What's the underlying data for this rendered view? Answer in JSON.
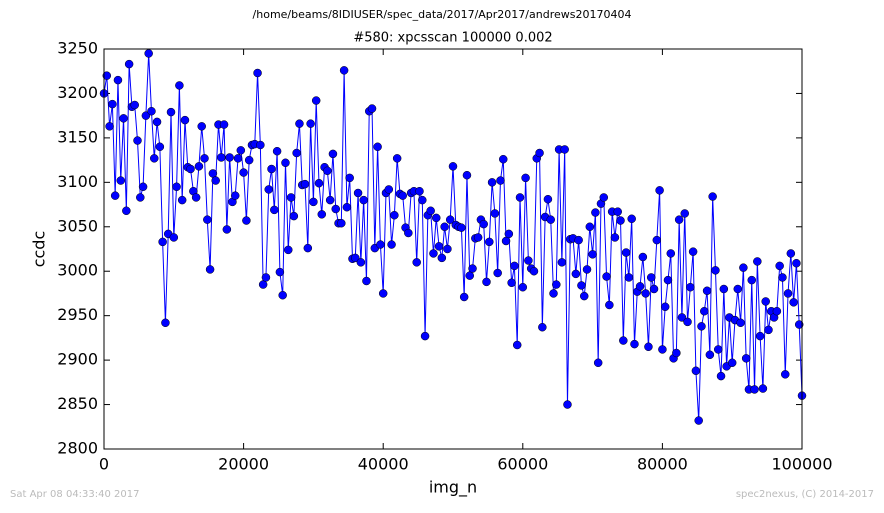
{
  "chart_data": {
    "type": "line",
    "suptitle": "/home/beams/8IDIUSER/spec_data/2017/Apr2017/andrews20170404",
    "title": "#580: xpcsscan 100000 0.002",
    "xlabel": "img_n",
    "ylabel": "ccdc",
    "footer_left": "Sat Apr 08 04:33:40 2017",
    "footer_right": "spec2nexus, (C) 2014-2017",
    "xlim": [
      0,
      100000
    ],
    "ylim": [
      2800,
      3250
    ],
    "xticks": [
      0,
      20000,
      40000,
      60000,
      80000,
      100000
    ],
    "yticks": [
      2800,
      2850,
      2900,
      2950,
      3000,
      3050,
      3100,
      3150,
      3200,
      3250
    ],
    "grid": false,
    "x": [
      0,
      400,
      800,
      1200,
      1600,
      2000,
      2400,
      2800,
      3200,
      3600,
      4000,
      4400,
      4800,
      5200,
      5600,
      6000,
      6400,
      6800,
      7200,
      7600,
      8000,
      8400,
      8800,
      9200,
      9600,
      10000,
      10400,
      10800,
      11200,
      11600,
      12000,
      12400,
      12800,
      13200,
      13600,
      14000,
      14400,
      14800,
      15200,
      15600,
      16000,
      16400,
      16800,
      17200,
      17600,
      18000,
      18400,
      18800,
      19200,
      19600,
      20000,
      20400,
      20800,
      21200,
      21600,
      22000,
      22400,
      22800,
      23200,
      23600,
      24000,
      24400,
      24800,
      25200,
      25600,
      26000,
      26400,
      26800,
      27200,
      27600,
      28000,
      28400,
      28800,
      29200,
      29600,
      30000,
      30400,
      30800,
      31200,
      31600,
      32000,
      32400,
      32800,
      33200,
      33600,
      34000,
      34400,
      34800,
      35200,
      35600,
      36000,
      36400,
      36800,
      37200,
      37600,
      38000,
      38400,
      38800,
      39200,
      39600,
      40000,
      40400,
      40800,
      41200,
      41600,
      42000,
      42400,
      42800,
      43200,
      43600,
      44000,
      44400,
      44800,
      45200,
      45600,
      46000,
      46400,
      46800,
      47200,
      47600,
      48000,
      48400,
      48800,
      49200,
      49600,
      50000,
      50400,
      50800,
      51200,
      51600,
      52000,
      52400,
      52800,
      53200,
      53600,
      54000,
      54400,
      54800,
      55200,
      55600,
      56000,
      56400,
      56800,
      57200,
      57600,
      58000,
      58400,
      58800,
      59200,
      59600,
      60000,
      60400,
      60800,
      61200,
      61600,
      62000,
      62400,
      62800,
      63200,
      63600,
      64000,
      64400,
      64800,
      65200,
      65600,
      66000,
      66400,
      66800,
      67200,
      67600,
      68000,
      68400,
      68800,
      69200,
      69600,
      70000,
      70400,
      70800,
      71200,
      71600,
      72000,
      72400,
      72800,
      73200,
      73600,
      74000,
      74400,
      74800,
      75200,
      75600,
      76000,
      76400,
      76800,
      77200,
      77600,
      78000,
      78400,
      78800,
      79200,
      79600,
      80000,
      80400,
      80800,
      81200,
      81600,
      82000,
      82400,
      82800,
      83200,
      83600,
      84000,
      84400,
      84800,
      85200,
      85600,
      86000,
      86400,
      86800,
      87200,
      87600,
      88000,
      88400,
      88800,
      89200,
      89600,
      90000,
      90400,
      90800,
      91200,
      91600,
      92000,
      92400,
      92800,
      93200,
      93600,
      94000,
      94400,
      94800,
      95200,
      95600,
      96000,
      96400,
      96800,
      97200,
      97600,
      98000,
      98400,
      98800,
      99200,
      99600,
      100000
    ],
    "series": [
      {
        "color": "#0000ff",
        "values": [
          3200,
          3220,
          3163,
          3188,
          3085,
          3215,
          3102,
          3172,
          3068,
          3233,
          3185,
          3187,
          3147,
          3083,
          3095,
          3175,
          3245,
          3180,
          3127,
          3168,
          3140,
          3033,
          2942,
          3042,
          3179,
          3038,
          3095,
          3209,
          3080,
          3170,
          3117,
          3115,
          3090,
          3083,
          3118,
          3163,
          3127,
          3058,
          3002,
          3110,
          3102,
          3165,
          3128,
          3165,
          3047,
          3128,
          3078,
          3085,
          3127,
          3136,
          3111,
          3057,
          3125,
          3142,
          3143,
          3223,
          3142,
          2985,
          2993,
          3092,
          3115,
          3069,
          3135,
          2999,
          2973,
          3122,
          3024,
          3083,
          3062,
          3133,
          3166,
          3097,
          3098,
          3026,
          3166,
          3078,
          3192,
          3099,
          3064,
          3117,
          3113,
          3080,
          3132,
          3070,
          3054,
          3054,
          3226,
          3072,
          3105,
          3014,
          3015,
          3088,
          3010,
          3080,
          2989,
          3180,
          3183,
          3026,
          3140,
          3030,
          2975,
          3088,
          3092,
          3030,
          3063,
          3127,
          3087,
          3085,
          3049,
          3043,
          3088,
          3090,
          3010,
          3090,
          3080,
          2927,
          3063,
          3068,
          3020,
          3060,
          3028,
          3015,
          3050,
          3025,
          3058,
          3118,
          3052,
          3050,
          3049,
          2971,
          3108,
          2995,
          3003,
          3037,
          3038,
          3058,
          3053,
          2988,
          3033,
          3100,
          3065,
          2998,
          3102,
          3126,
          3034,
          3042,
          2987,
          3006,
          2917,
          3083,
          2982,
          3105,
          3012,
          3003,
          3000,
          3127,
          3133,
          2937,
          3061,
          3081,
          3058,
          2975,
          2985,
          3137,
          3010,
          3137,
          2850,
          3036,
          3037,
          2997,
          3035,
          2984,
          2972,
          3002,
          3050,
          3019,
          3066,
          2897,
          3076,
          3083,
          2994,
          2962,
          3067,
          3038,
          3067,
          3057,
          2922,
          3021,
          2993,
          3059,
          2918,
          2977,
          2983,
          3016,
          2975,
          2915,
          2993,
          2980,
          3035,
          3091,
          2912,
          2960,
          2990,
          3020,
          2902,
          2908,
          3058,
          2948,
          3065,
          2943,
          2982,
          3022,
          2888,
          2832,
          2938,
          2955,
          2978,
          2906,
          3084,
          3001,
          2912,
          2882,
          2980,
          2893,
          2948,
          2897,
          2945,
          2980,
          2942,
          3004,
          2902,
          2867,
          2990,
          2867,
          3011,
          2927,
          2868,
          2966,
          2934,
          2955,
          2948,
          2955,
          3006,
          2993,
          2884,
          2975,
          3020,
          2965,
          3009,
          2940,
          2860
        ]
      }
    ]
  }
}
